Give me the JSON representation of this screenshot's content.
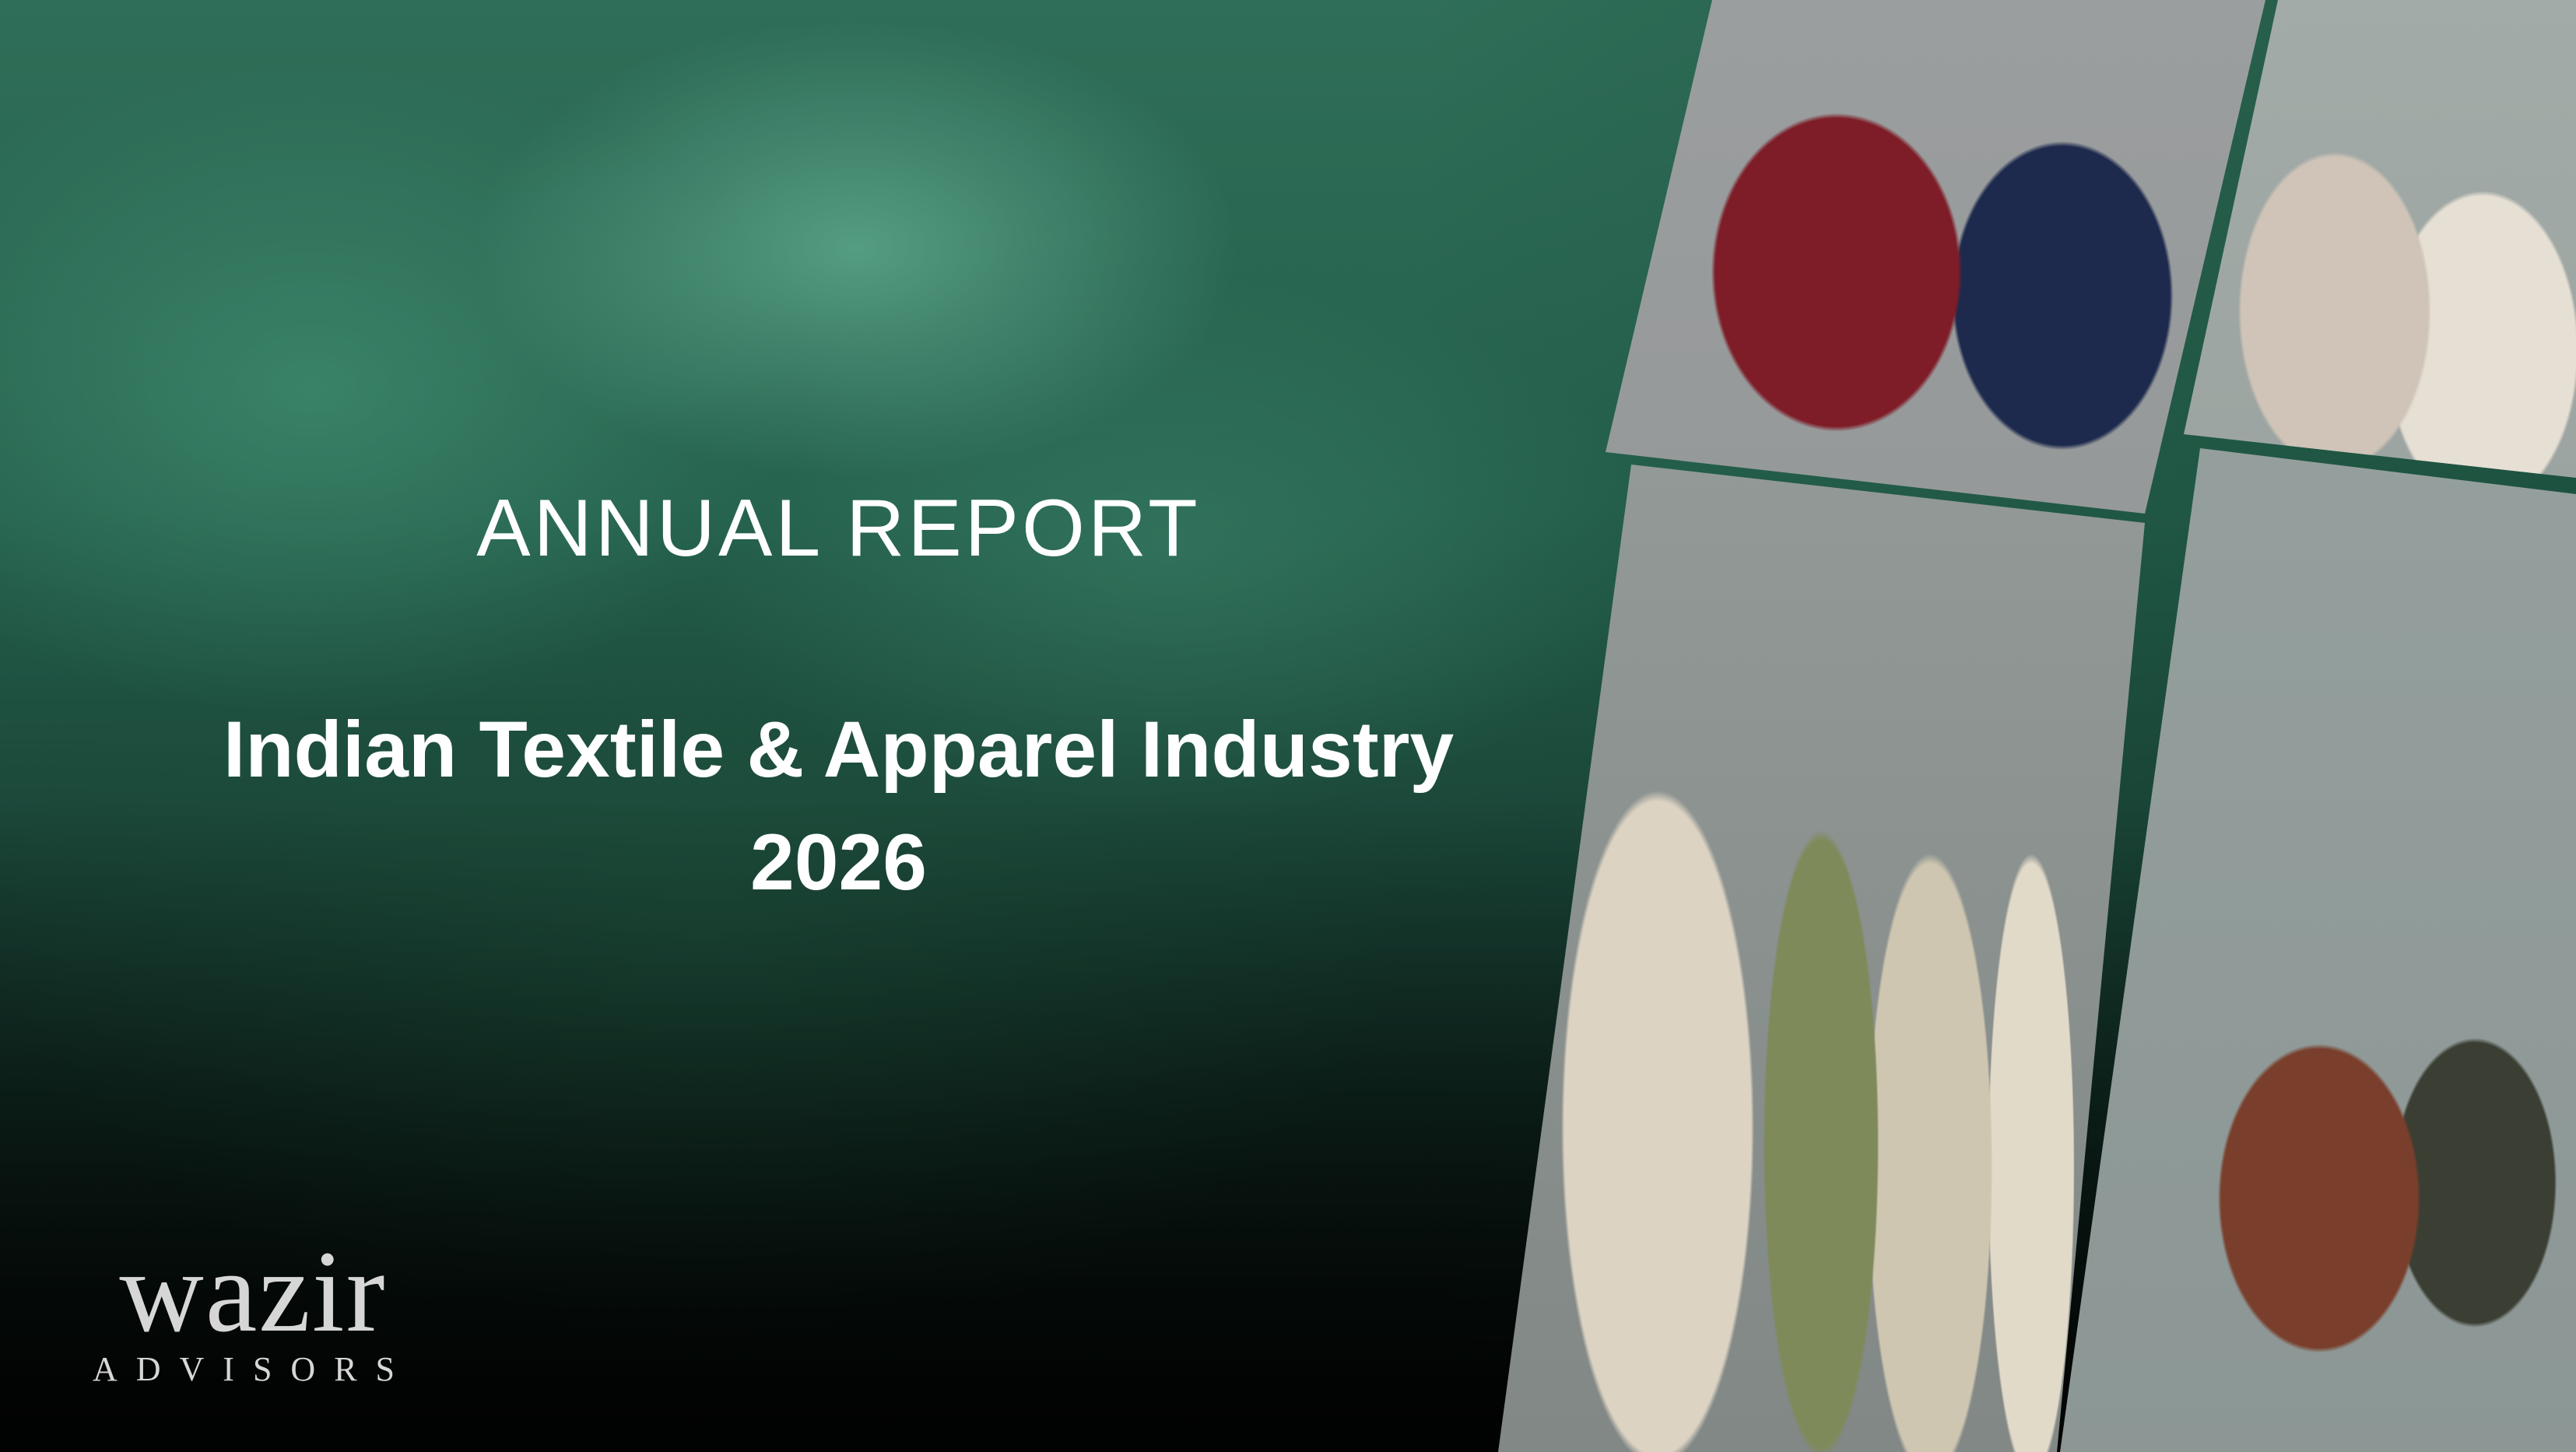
{
  "cover": {
    "subtitle": "ANNUAL REPORT",
    "title": "Indian Textile & Apparel Industry",
    "year": "2026"
  },
  "logo": {
    "wordmark": "wazir",
    "tagline": "ADVISORS"
  },
  "colors": {
    "background": "#24604c",
    "text": "#ffffff",
    "logo": "#d6d6d6"
  }
}
